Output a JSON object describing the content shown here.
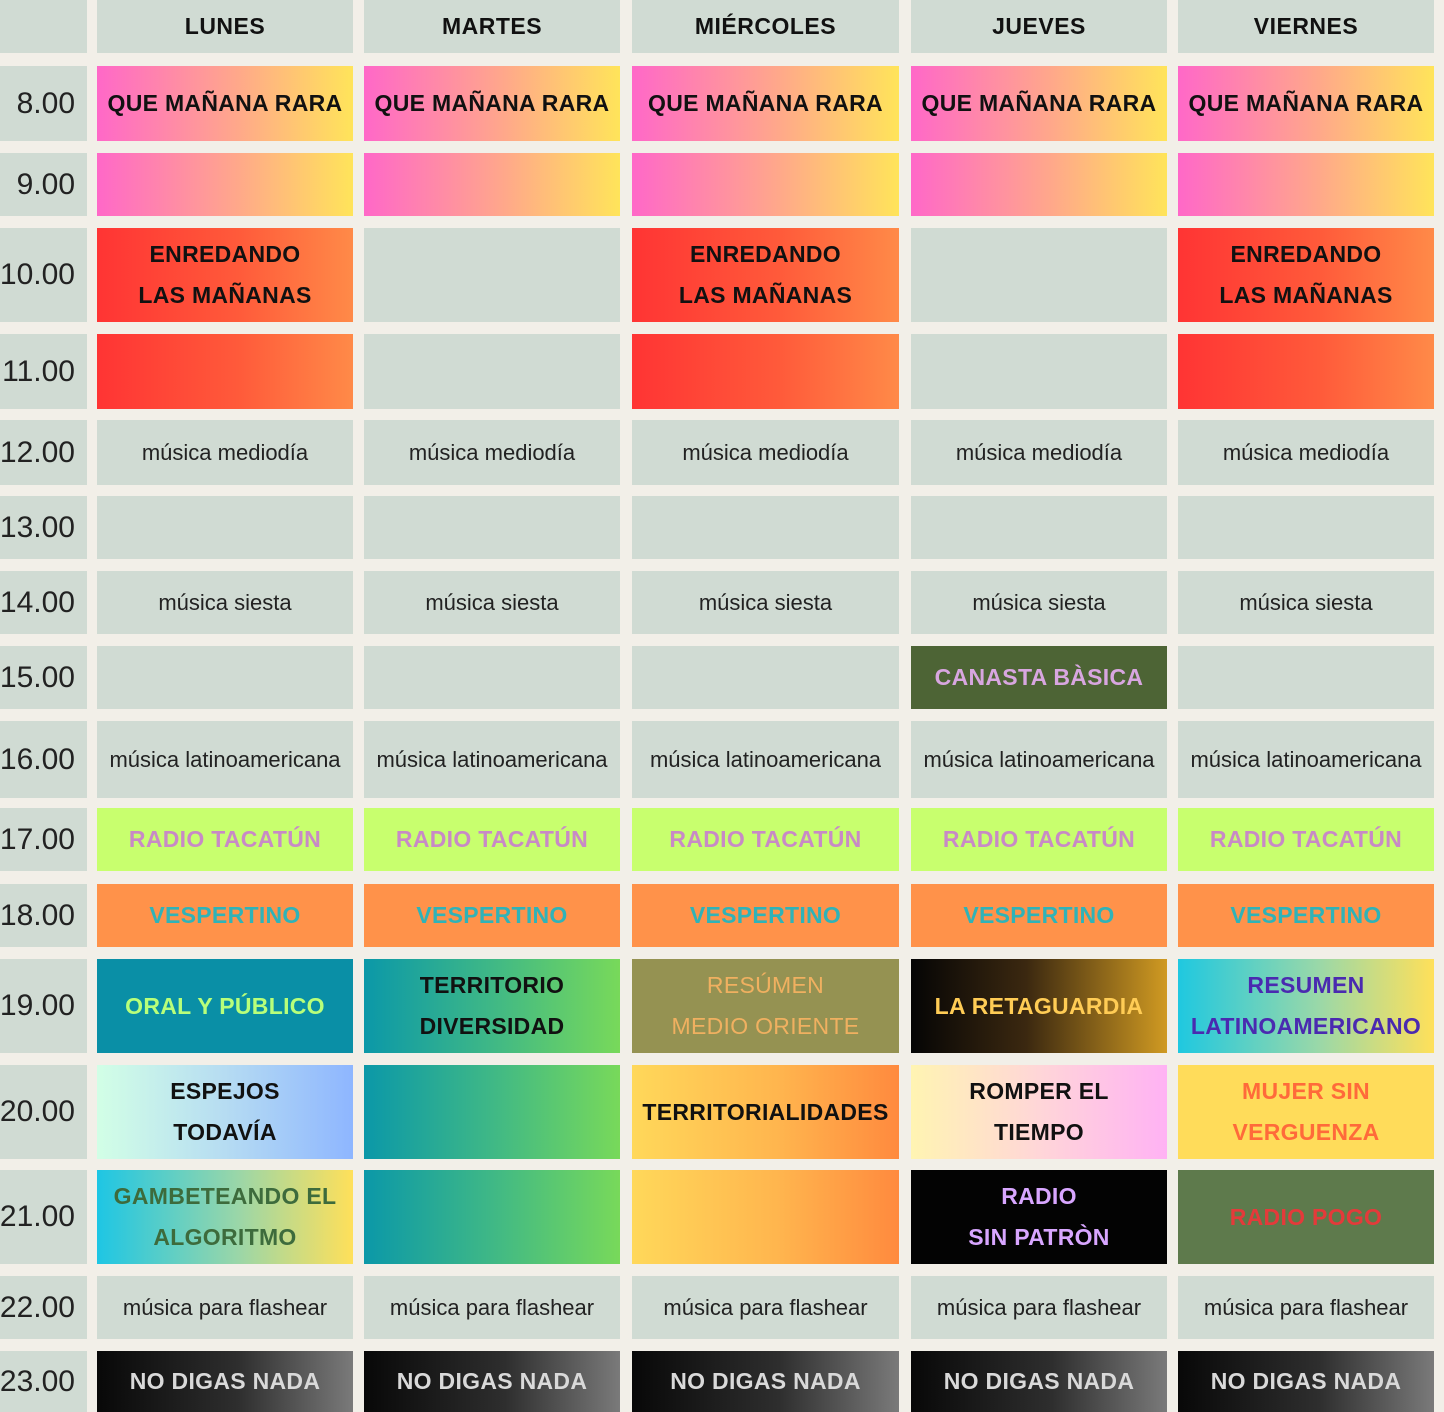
{
  "days": [
    "LUNES",
    "MARTES",
    "MIÉRCOLES",
    "JUEVES",
    "VIERNES"
  ],
  "times": [
    "8.00",
    "9.00",
    "10.00",
    "11.00",
    "12.00",
    "13.00",
    "14.00",
    "15.00",
    "16.00",
    "17.00",
    "18.00",
    "19.00",
    "20.00",
    "21.00",
    "22.00",
    "23.00"
  ],
  "schedule": [
    [
      "QUE MAÑANA RARA",
      "QUE MAÑANA RARA",
      "QUE MAÑANA RARA",
      "QUE MAÑANA RARA",
      "QUE MAÑANA RARA"
    ],
    [
      "",
      "",
      "",
      "",
      ""
    ],
    [
      "ENREDANDO\nLAS MAÑANAS",
      "",
      "ENREDANDO\nLAS MAÑANAS",
      "",
      "ENREDANDO\nLAS MAÑANAS"
    ],
    [
      "",
      "",
      "",
      "",
      ""
    ],
    [
      "música mediodía",
      "música mediodía",
      "música mediodía",
      "música mediodía",
      "música mediodía"
    ],
    [
      "",
      "",
      "",
      "",
      ""
    ],
    [
      "música siesta",
      "música siesta",
      "música siesta",
      "música siesta",
      "música siesta"
    ],
    [
      "",
      "",
      "",
      "CANASTA BÀSICA",
      ""
    ],
    [
      "música latinoamericana",
      "música latinoamericana",
      "música latinoamericana",
      "música latinoamericana",
      "música latinoamericana"
    ],
    [
      "RADIO TACATÚN",
      "RADIO TACATÚN",
      "RADIO TACATÚN",
      "RADIO TACATÚN",
      "RADIO TACATÚN"
    ],
    [
      "VESPERTINO",
      "VESPERTINO",
      "VESPERTINO",
      "VESPERTINO",
      "VESPERTINO"
    ],
    [
      "ORAL Y PÚBLICO",
      "TERRITORIO\nDIVERSIDAD",
      "RESÚMEN\nMEDIO ORIENTE",
      "LA RETAGUARDIA",
      "RESUMEN\nLATINOAMERICANO"
    ],
    [
      "ESPEJOS\nTODAVÍA",
      "",
      "TERRITORIALIDADES",
      "ROMPER EL\nTIEMPO",
      "MUJER SIN\nVERGUENZA"
    ],
    [
      "GAMBETEANDO EL\nALGORITMO",
      "",
      "",
      "RADIO\nSIN PATRÒN",
      "RADIO POGO"
    ],
    [
      "música para flashear",
      "música para flashear",
      "música para flashear",
      "música para flashear",
      "música para flashear"
    ],
    [
      "NO DIGAS NADA",
      "NO DIGAS NADA",
      "NO DIGAS NADA",
      "NO DIGAS NADA",
      "NO DIGAS NADA"
    ]
  ],
  "styles": [
    [
      "g-qmr",
      "g-qmr",
      "g-qmr",
      "g-qmr",
      "g-qmr"
    ],
    [
      "g-qmr",
      "g-qmr",
      "g-qmr",
      "g-qmr",
      "g-qmr"
    ],
    [
      "g-enr",
      "",
      "g-enr",
      "",
      "g-enr"
    ],
    [
      "g-enr",
      "",
      "g-enr",
      "",
      "g-enr"
    ],
    [
      "",
      "",
      "",
      "",
      ""
    ],
    [
      "",
      "",
      "",
      "",
      ""
    ],
    [
      "",
      "",
      "",
      "",
      ""
    ],
    [
      "",
      "",
      "",
      "g-canasta",
      ""
    ],
    [
      "",
      "",
      "",
      "",
      ""
    ],
    [
      "g-tacatun",
      "g-tacatun",
      "g-tacatun",
      "g-tacatun",
      "g-tacatun"
    ],
    [
      "g-vesp",
      "g-vesp",
      "g-vesp",
      "g-vesp",
      "g-vesp"
    ],
    [
      "g-oral",
      "g-terrdiv",
      "g-resmo",
      "g-reta",
      "g-reslat"
    ],
    [
      "g-espejos",
      "g-terrdiv",
      "g-territ",
      "g-romper",
      "g-mujer"
    ],
    [
      "g-gamb",
      "g-terrdiv",
      "g-territ",
      "g-sinpatron",
      "g-pogo"
    ],
    [
      "",
      "",
      "",
      "",
      ""
    ],
    [
      "g-nodigas",
      "g-nodigas",
      "g-nodigas",
      "g-nodigas",
      "g-nodigas"
    ]
  ]
}
